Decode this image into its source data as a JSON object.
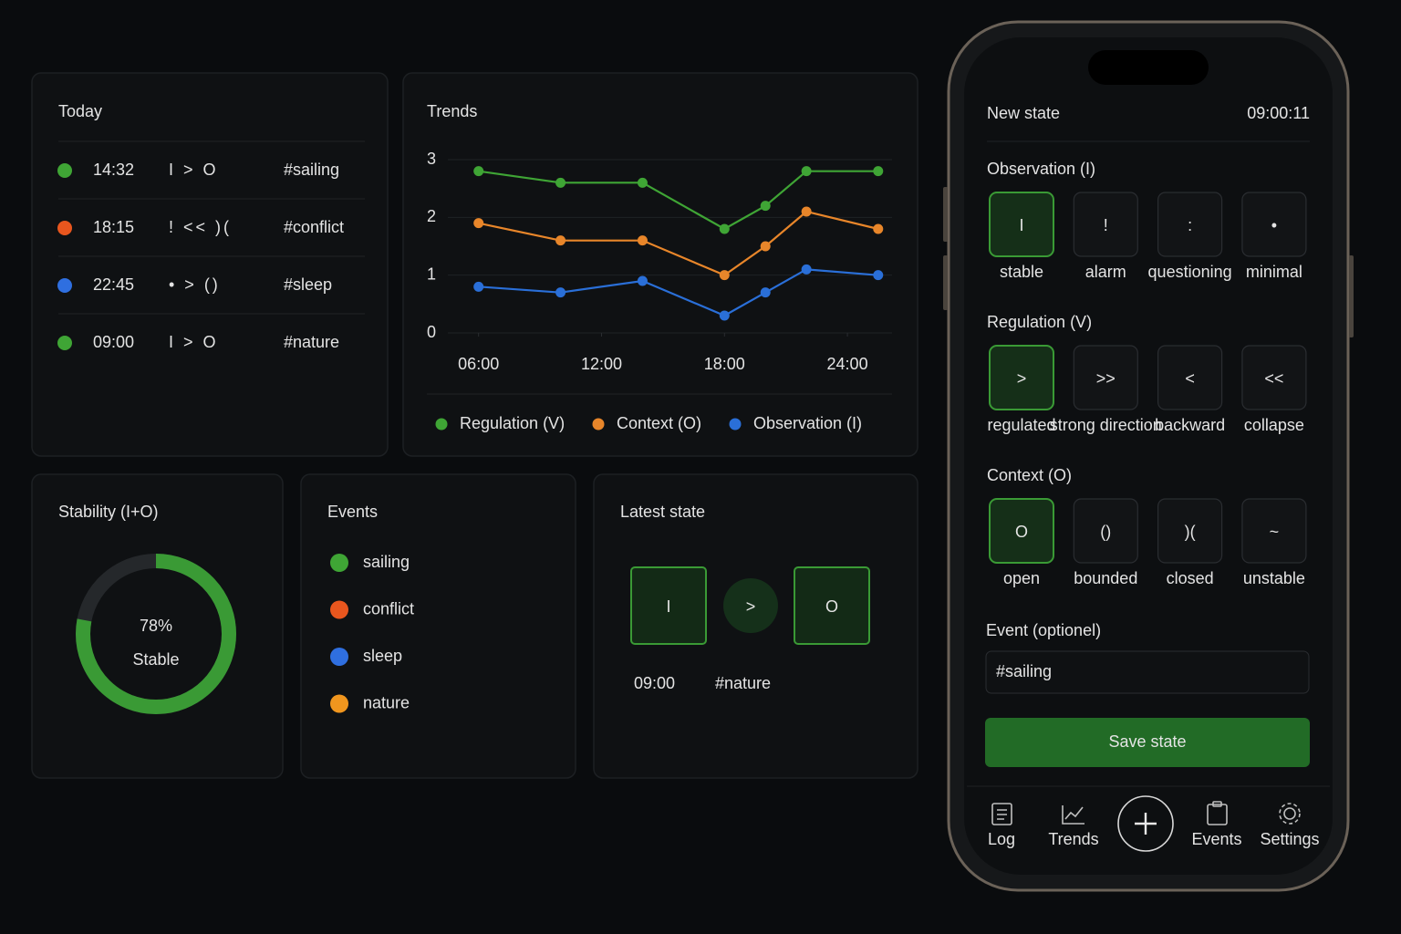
{
  "today": {
    "title": "Today",
    "entries": [
      {
        "color": "#3fa535",
        "time": "14:32",
        "state": "I > O",
        "tag": "#sailing"
      },
      {
        "color": "#e8561e",
        "time": "18:15",
        "state": "! << )(",
        "tag": "#conflict"
      },
      {
        "color": "#2f6fe0",
        "time": "22:45",
        "state": "• > ()",
        "tag": "#sleep"
      },
      {
        "color": "#3fa535",
        "time": "09:00",
        "state": "I > O",
        "tag": "#nature"
      }
    ]
  },
  "chart_data": {
    "type": "line",
    "title": "Trends",
    "x": [
      6,
      10,
      14,
      18,
      20,
      22,
      25.5
    ],
    "xlim": [
      4.5,
      26
    ],
    "xticks": [
      {
        "value": 6,
        "label": "06:00"
      },
      {
        "value": 12,
        "label": "12:00"
      },
      {
        "value": 18,
        "label": "18:00"
      },
      {
        "value": 24,
        "label": "24:00"
      }
    ],
    "ylim": [
      0,
      3
    ],
    "yticks": [
      0,
      1,
      2,
      3
    ],
    "grid": true,
    "series": [
      {
        "name": "Regulation (V)",
        "color": "#3fa535",
        "values": [
          2.8,
          2.6,
          2.6,
          1.8,
          2.2,
          2.8,
          2.8
        ]
      },
      {
        "name": "Context (O)",
        "color": "#e8862a",
        "values": [
          1.9,
          1.6,
          1.6,
          1.0,
          1.5,
          2.1,
          1.8
        ]
      },
      {
        "name": "Observation (I)",
        "color": "#2a6fd8",
        "values": [
          0.8,
          0.7,
          0.9,
          0.3,
          0.7,
          1.1,
          1.0
        ]
      }
    ]
  },
  "stability": {
    "title": "Stability (I+O)",
    "value": 78,
    "value_label": "78%",
    "caption": "Stable",
    "color": "#3a9a35"
  },
  "events": {
    "title": "Events",
    "items": [
      {
        "name": "sailing",
        "color": "#3fa535"
      },
      {
        "name": "conflict",
        "color": "#e8561e"
      },
      {
        "name": "sleep",
        "color": "#2f6fe0"
      },
      {
        "name": "nature",
        "color": "#f0961e"
      }
    ]
  },
  "latest_state": {
    "title": "Latest state",
    "symbols": [
      "I",
      ">",
      "O"
    ],
    "time": "09:00",
    "tag": "#nature"
  },
  "phone": {
    "title": "New state",
    "clock": "09:00:11",
    "sections": [
      {
        "label": "Observation (I)",
        "selected": 0,
        "options": [
          {
            "symbol": "I",
            "label": "stable"
          },
          {
            "symbol": "!",
            "label": "alarm"
          },
          {
            "symbol": ":",
            "label": "questioning"
          },
          {
            "symbol": "•",
            "label": "minimal"
          }
        ]
      },
      {
        "label": "Regulation (V)",
        "selected": 0,
        "options": [
          {
            "symbol": ">",
            "label": "regulated"
          },
          {
            "symbol": ">>",
            "label": "strong direction"
          },
          {
            "symbol": "<",
            "label": "backward"
          },
          {
            "symbol": "<<",
            "label": "collapse"
          }
        ]
      },
      {
        "label": "Context (O)",
        "selected": 0,
        "options": [
          {
            "symbol": "O",
            "label": "open"
          },
          {
            "symbol": "()",
            "label": "bounded"
          },
          {
            "symbol": ")(",
            "label": "closed"
          },
          {
            "symbol": "~",
            "label": "unstable"
          }
        ]
      }
    ],
    "event_label": "Event (optionel)",
    "event_value": "#sailing",
    "save_button": "Save state",
    "nav": [
      "Log",
      "Trends",
      "Events",
      "Settings"
    ]
  }
}
